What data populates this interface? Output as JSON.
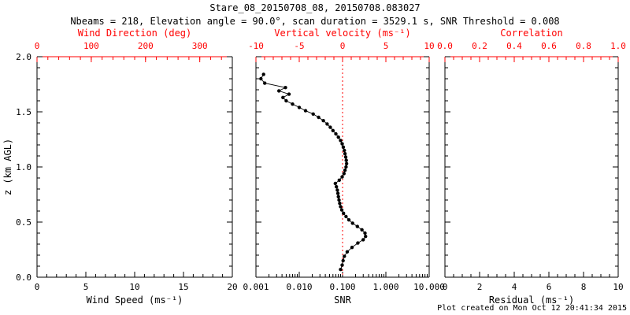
{
  "header": {
    "title": "Stare_08_20150708_08, 20150708.083027",
    "subtitle": "Nbeams = 218, Elevation angle = 90.0°, scan duration = 3529.1 s, SNR Threshold = 0.008"
  },
  "footer": {
    "created": "Plot created on Mon Oct 12 20:41:34 2015"
  },
  "colors": {
    "primary_axis": "#000000",
    "secondary_axis": "#ff0000",
    "background": "#ffffff",
    "marker": "#000000"
  },
  "chart_data": [
    {
      "type": "scatter",
      "panel": "wind",
      "bottom_axis": {
        "label": "Wind Speed (ms⁻¹)",
        "min": 0,
        "max": 20,
        "ticks": [
          0,
          5,
          10,
          15,
          20
        ],
        "tick_labels": [
          "0",
          "5",
          "10",
          "15",
          "20"
        ],
        "minor_div": 5
      },
      "top_axis": {
        "label": "Wind Direction (deg)",
        "color": "#ff0000",
        "min": 0,
        "max": 360,
        "ticks": [
          0,
          100,
          200,
          300
        ],
        "tick_labels": [
          "0",
          "100",
          "200",
          "300"
        ],
        "minor_div": 5
      },
      "y_axis": {
        "label": "z (km AGL)",
        "min": 0,
        "max": 2,
        "ticks": [
          0,
          0.5,
          1,
          1.5,
          2
        ],
        "tick_labels": [
          "0.0",
          "0.5",
          "1.0",
          "1.5",
          "2.0"
        ],
        "minor_div": 5
      },
      "series": []
    },
    {
      "type": "scatter",
      "panel": "snr",
      "bottom_axis": {
        "label": "SNR",
        "scale": "log",
        "min": 0.001,
        "max": 10,
        "ticks": [
          0.001,
          0.01,
          0.1,
          1,
          10
        ],
        "tick_labels": [
          "0.001",
          "0.010",
          "0.100",
          "1.000",
          "10.000"
        ]
      },
      "top_axis": {
        "label": "Vertical velocity (ms⁻¹)",
        "color": "#ff0000",
        "min": -10,
        "max": 10,
        "ticks": [
          -10,
          -5,
          0,
          5,
          10
        ],
        "tick_labels": [
          "-10",
          "-5",
          "0",
          "5",
          "10"
        ],
        "minor_div": 5
      },
      "y_axis": {
        "label": "",
        "min": 0,
        "max": 2,
        "ticks": [
          0,
          0.5,
          1,
          1.5,
          2
        ],
        "minor_div": 5
      },
      "reference_line": {
        "axis": "top",
        "value": 0,
        "style": "dotted",
        "color": "#ff0000"
      },
      "series": [
        {
          "name": "SNR profile",
          "marker": "filled-circle",
          "color": "#000000",
          "points": [
            [
              0.09,
              0.07
            ],
            [
              0.098,
              0.11
            ],
            [
              0.103,
              0.15
            ],
            [
              0.11,
              0.19
            ],
            [
              0.128,
              0.23
            ],
            [
              0.165,
              0.27
            ],
            [
              0.225,
              0.31
            ],
            [
              0.3,
              0.34
            ],
            [
              0.34,
              0.37
            ],
            [
              0.33,
              0.4
            ],
            [
              0.28,
              0.43
            ],
            [
              0.22,
              0.46
            ],
            [
              0.17,
              0.49
            ],
            [
              0.14,
              0.52
            ],
            [
              0.12,
              0.55
            ],
            [
              0.105,
              0.58
            ],
            [
              0.096,
              0.61
            ],
            [
              0.09,
              0.64
            ],
            [
              0.086,
              0.67
            ],
            [
              0.083,
              0.7
            ],
            [
              0.08,
              0.73
            ],
            [
              0.078,
              0.76
            ],
            [
              0.076,
              0.79
            ],
            [
              0.072,
              0.82
            ],
            [
              0.068,
              0.85
            ],
            [
              0.084,
              0.88
            ],
            [
              0.098,
              0.91
            ],
            [
              0.108,
              0.94
            ],
            [
              0.114,
              0.97
            ],
            [
              0.12,
              1.0
            ],
            [
              0.124,
              1.03
            ],
            [
              0.122,
              1.06
            ],
            [
              0.118,
              1.09
            ],
            [
              0.114,
              1.12
            ],
            [
              0.11,
              1.15
            ],
            [
              0.104,
              1.18
            ],
            [
              0.098,
              1.21
            ],
            [
              0.09,
              1.24
            ],
            [
              0.08,
              1.27
            ],
            [
              0.07,
              1.3
            ],
            [
              0.06,
              1.33
            ],
            [
              0.052,
              1.36
            ],
            [
              0.044,
              1.39
            ],
            [
              0.036,
              1.42
            ],
            [
              0.028,
              1.45
            ],
            [
              0.021,
              1.48
            ],
            [
              0.014,
              1.51
            ],
            [
              0.01,
              1.54
            ],
            [
              0.007,
              1.57
            ],
            [
              0.005,
              1.6
            ],
            [
              0.0042,
              1.63
            ],
            [
              0.0058,
              1.66
            ],
            [
              0.0034,
              1.69
            ],
            [
              0.0048,
              1.72
            ],
            [
              0.0016,
              1.76
            ],
            [
              0.0013,
              1.8
            ],
            [
              0.0015,
              1.84
            ]
          ]
        }
      ]
    },
    {
      "type": "scatter",
      "panel": "residual",
      "bottom_axis": {
        "label": "Residual (ms⁻¹)",
        "min": 0,
        "max": 10,
        "ticks": [
          0,
          2,
          4,
          6,
          8,
          10
        ],
        "tick_labels": [
          "0",
          "2",
          "4",
          "6",
          "8",
          "10"
        ],
        "minor_div": 4
      },
      "top_axis": {
        "label": "Correlation",
        "color": "#ff0000",
        "min": 0,
        "max": 1,
        "ticks": [
          0,
          0.2,
          0.4,
          0.6,
          0.8,
          1.0
        ],
        "tick_labels": [
          "0.0",
          "0.2",
          "0.4",
          "0.6",
          "0.8",
          "1.0"
        ],
        "minor_div": 4
      },
      "y_axis": {
        "label": "",
        "min": 0,
        "max": 2,
        "ticks": [
          0,
          0.5,
          1,
          1.5,
          2
        ],
        "minor_div": 5
      },
      "series": []
    }
  ]
}
